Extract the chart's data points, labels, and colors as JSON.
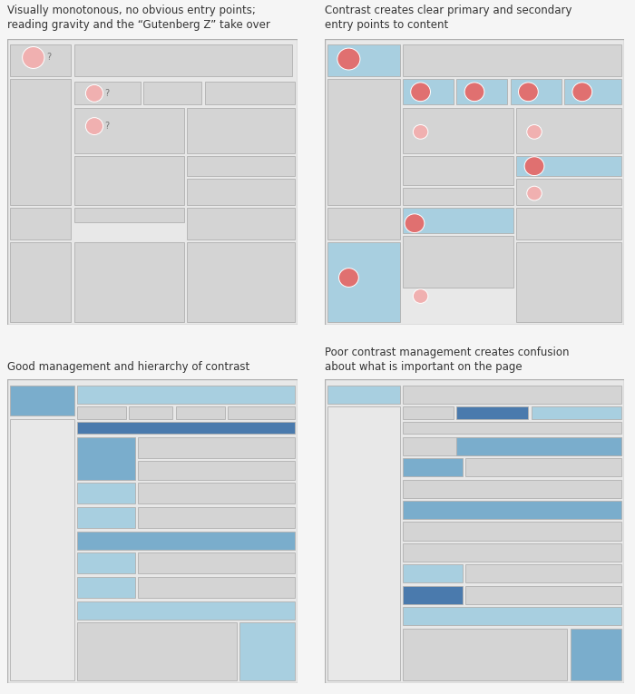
{
  "bg": "#ebebeb",
  "gray_box": "#d4d4d4",
  "outer_bg": "#e8e8e8",
  "light_blue": "#a8cfe0",
  "medium_blue": "#7aadcc",
  "dark_blue": "#4a7aad",
  "dot_primary": "#e07070",
  "dot_secondary": "#f0b0b0",
  "border_color": "#b0b0b0",
  "titles": [
    "Visually monotonous, no obvious entry points;\nreading gravity and the “Gutenberg Z” take over",
    "Contrast creates clear primary and secondary\nentry points to content",
    "Good management and hierarchy of contrast",
    "Poor contrast management creates confusion\nabout what is important on the page"
  ],
  "title_fontsize": 8.5,
  "fig_bg": "#f5f5f5"
}
